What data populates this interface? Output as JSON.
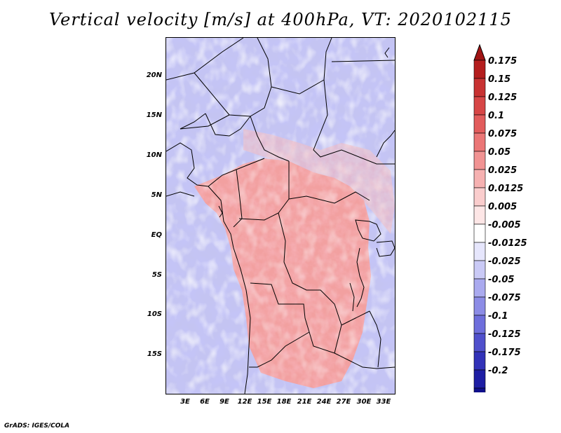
{
  "title": "Vertical velocity [m/s] at 400hPa, VT: 2020102115",
  "credit": "GrADS: IGES/COLA",
  "map": {
    "lat_labels": [
      "20N",
      "15N",
      "10N",
      "5N",
      "EQ",
      "5S",
      "10S",
      "15S"
    ],
    "lon_labels": [
      "3E",
      "6E",
      "9E",
      "12E",
      "15E",
      "18E",
      "21E",
      "24E",
      "27E",
      "30E",
      "33E"
    ],
    "field": "vertical velocity",
    "level": "400hPa",
    "valid_time": "2020102115"
  },
  "colorbar": {
    "labels": [
      "0.175",
      "0.15",
      "0.125",
      "0.1",
      "0.075",
      "0.05",
      "0.025",
      "0.0125",
      "0.005",
      "-0.005",
      "-0.0125",
      "-0.025",
      "-0.05",
      "-0.075",
      "-0.1",
      "-0.125",
      "-0.175",
      "-0.2"
    ],
    "colors": [
      "#b41e1e",
      "#c83232",
      "#d74646",
      "#e25c5c",
      "#eb7676",
      "#f19393",
      "#f6b1b1",
      "#facdcd",
      "#fde6e6",
      "#ffffff",
      "#e6e6fc",
      "#cacaf6",
      "#aaaaef",
      "#8c8ce6",
      "#6e6edc",
      "#5050cc",
      "#3232b8",
      "#1e1ea4",
      "#0f0f8c"
    ],
    "arrow_top_color": "#a01414",
    "arrow_bottom_color": "#0a0a78"
  }
}
